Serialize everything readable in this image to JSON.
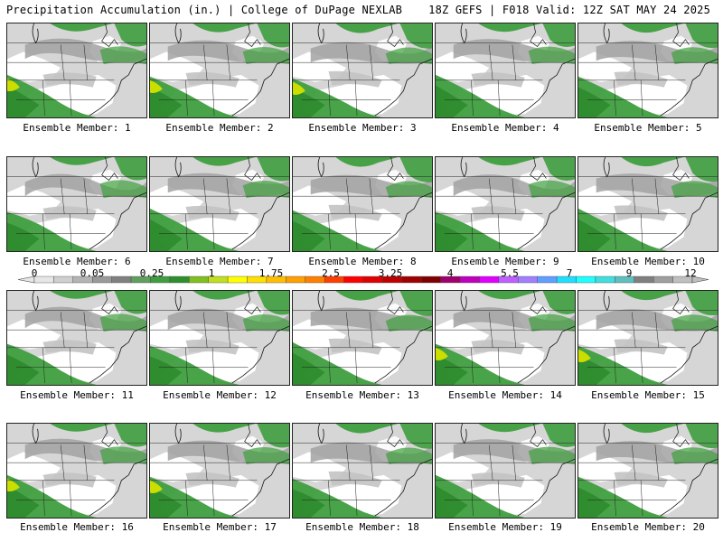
{
  "header": {
    "left": "Precipitation Accumulation (in.) | College of DuPage NEXLAB",
    "right": "18Z GEFS | F018 Valid: 12Z SAT MAY 24 2025"
  },
  "members": [
    {
      "label": "Ensemble Member: 1",
      "yellow": true
    },
    {
      "label": "Ensemble Member: 2",
      "yellow": true
    },
    {
      "label": "Ensemble Member: 3",
      "yellow": true
    },
    {
      "label": "Ensemble Member: 4",
      "yellow": false
    },
    {
      "label": "Ensemble Member: 5",
      "yellow": false
    },
    {
      "label": "Ensemble Member: 6",
      "yellow": false
    },
    {
      "label": "Ensemble Member: 7",
      "yellow": false
    },
    {
      "label": "Ensemble Member: 8",
      "yellow": false
    },
    {
      "label": "Ensemble Member: 9",
      "yellow": false
    },
    {
      "label": "Ensemble Member: 10",
      "yellow": false
    },
    {
      "label": "Ensemble Member: 11",
      "yellow": false
    },
    {
      "label": "Ensemble Member: 12",
      "yellow": false
    },
    {
      "label": "Ensemble Member: 13",
      "yellow": false
    },
    {
      "label": "Ensemble Member: 14",
      "yellow": true
    },
    {
      "label": "Ensemble Member: 15",
      "yellow": true
    },
    {
      "label": "Ensemble Member: 16",
      "yellow": true
    },
    {
      "label": "Ensemble Member: 17",
      "yellow": true
    },
    {
      "label": "Ensemble Member: 18",
      "yellow": false
    },
    {
      "label": "Ensemble Member: 19",
      "yellow": false
    },
    {
      "label": "Ensemble Member: 20",
      "yellow": false
    }
  ],
  "colorbar": {
    "tick_labels": [
      "0",
      "0.05",
      "0.25",
      "1",
      "1.75",
      "2.5",
      "3.25",
      "4",
      "5.5",
      "7",
      "9",
      "12"
    ],
    "colors": [
      "#e6e6e6",
      "#cfcfcf",
      "#b4b4b4",
      "#9a9a9a",
      "#808080",
      "#5f9f5f",
      "#3f9f3f",
      "#2f8f2f",
      "#7fbf1f",
      "#bfdf1f",
      "#ffff00",
      "#ffdf00",
      "#ffbf00",
      "#ff9f00",
      "#ff7f00",
      "#ff3f00",
      "#ff0000",
      "#df0000",
      "#bf0000",
      "#9f0000",
      "#7f0000",
      "#9f006f",
      "#bf00bf",
      "#df00ff",
      "#bf5fff",
      "#9f7fff",
      "#5f9fff",
      "#1fdfff",
      "#1fffff",
      "#3fdfdf",
      "#5fbfbf",
      "#7f7f7f",
      "#9f9f9f",
      "#bfbfbf"
    ]
  },
  "colors": {
    "bg_grey": "#d6d6d6",
    "light_grey": "#c3c3c3",
    "mid_grey": "#a2a2a2",
    "green": "#3f9f3f",
    "dark_green": "#1f7f1f",
    "yellow": "#ccdd00",
    "white": "#ffffff"
  }
}
